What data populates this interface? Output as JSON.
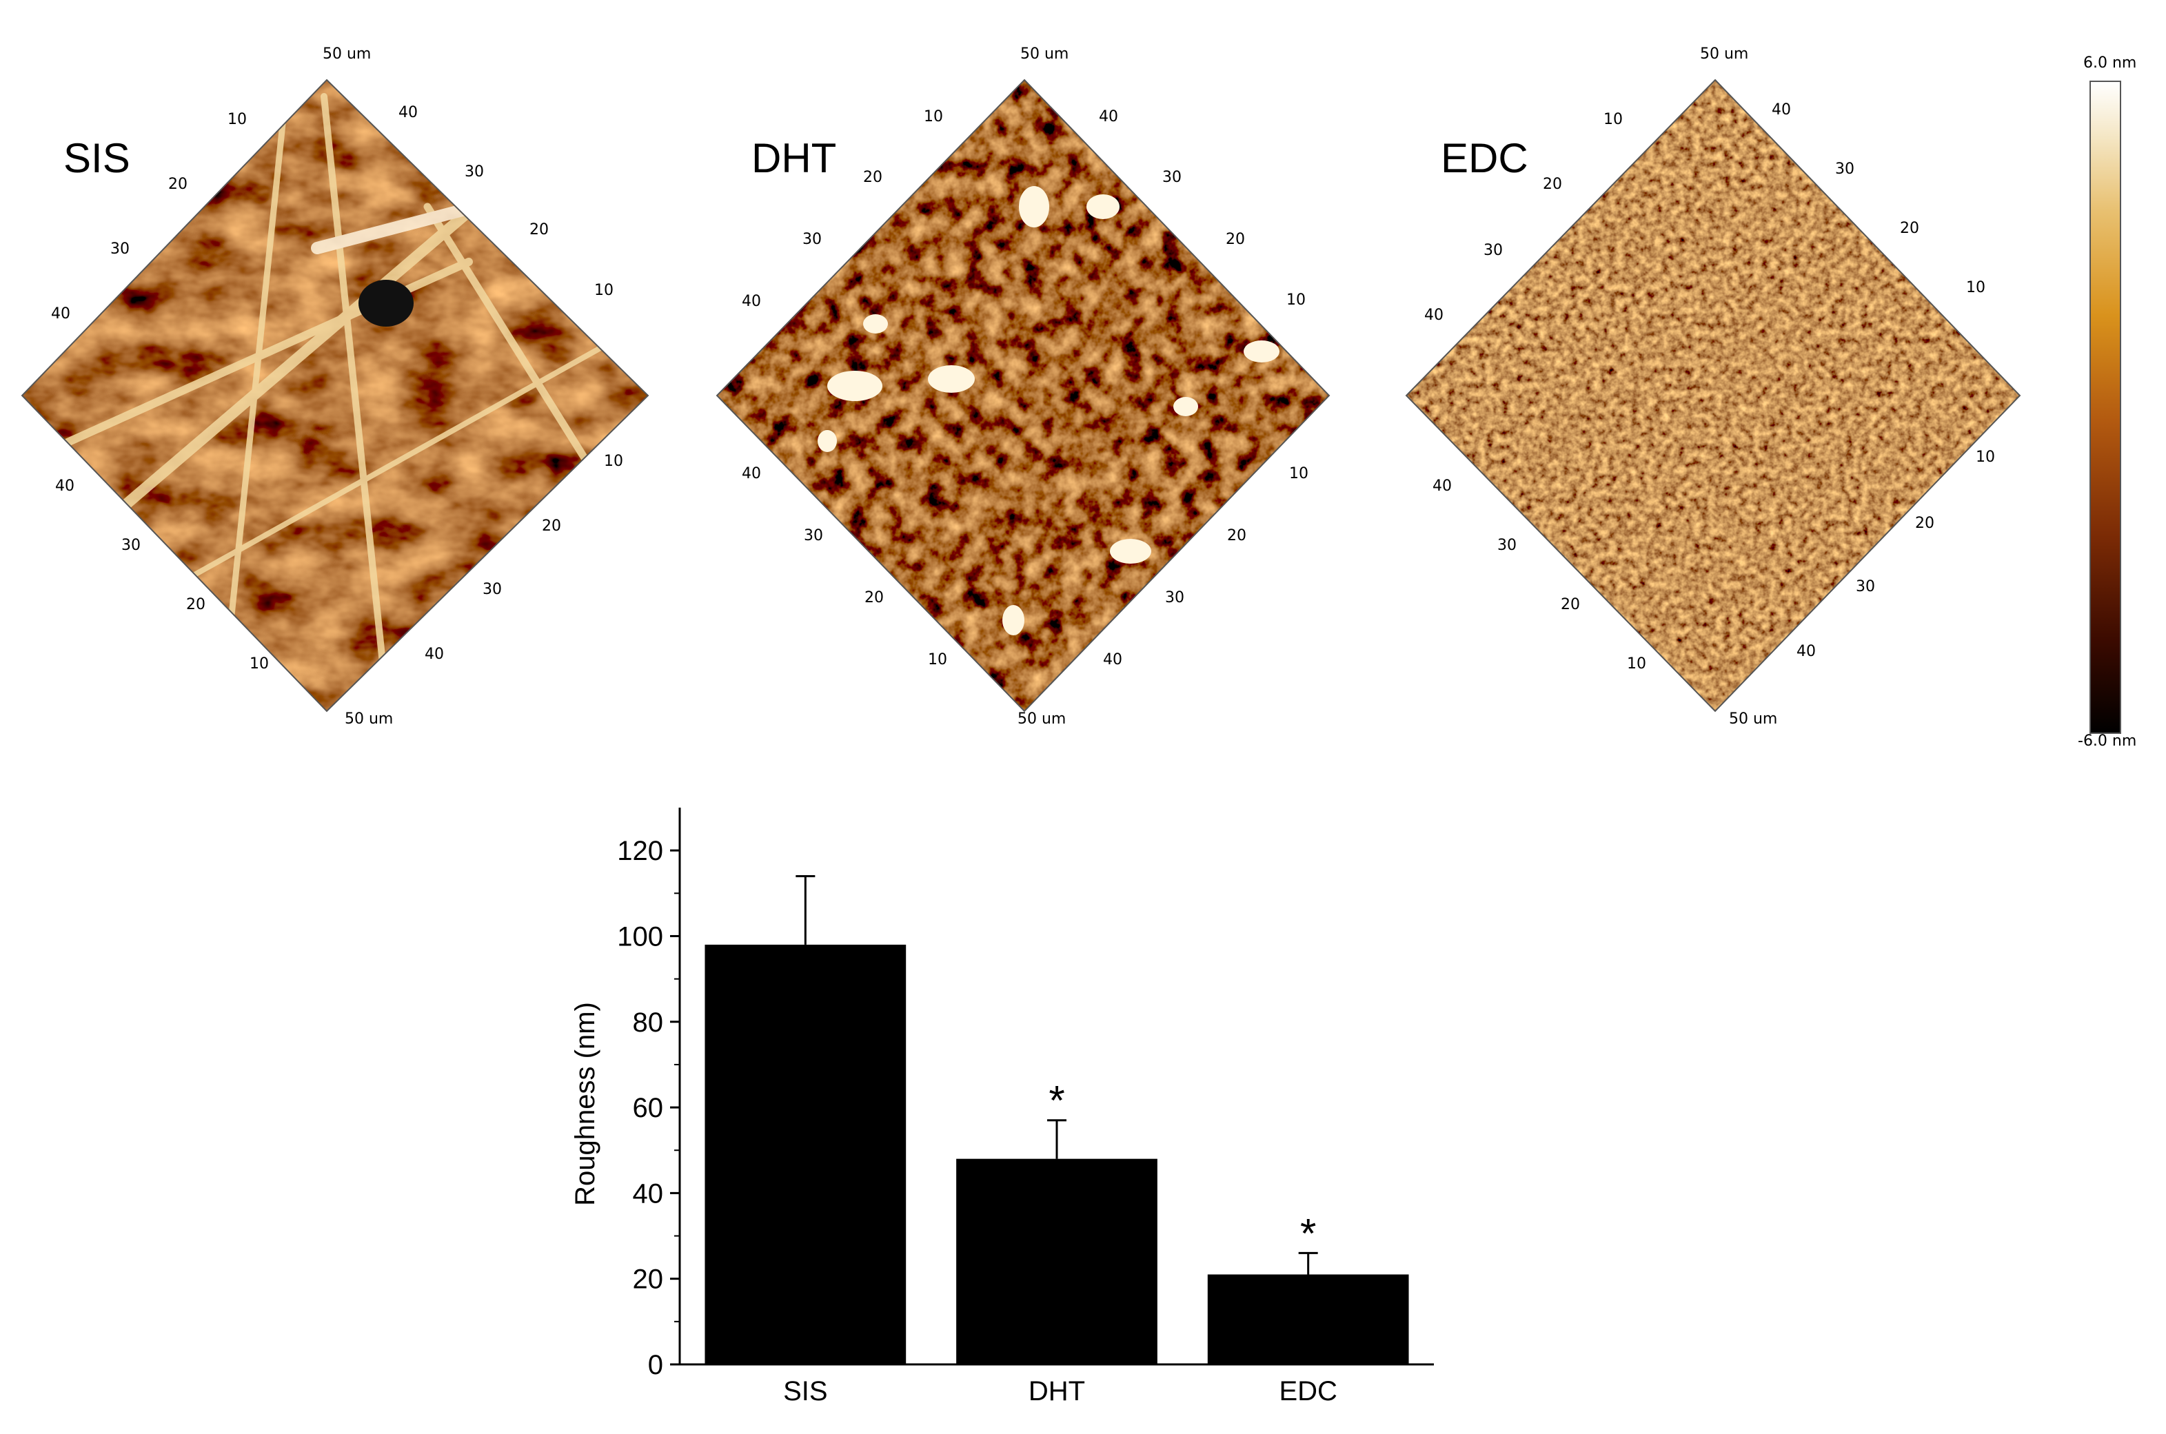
{
  "afm_panels": [
    {
      "label": "SIS",
      "side_a_ticks": [
        "10",
        "20",
        "30",
        "40"
      ],
      "side_b_ticks": [
        "40",
        "30",
        "20",
        "10"
      ],
      "side_c_ticks": [
        "10",
        "20",
        "30",
        "40"
      ],
      "side_d_ticks": [
        "40",
        "30",
        "20",
        "10"
      ],
      "corner_top": "50 um",
      "corner_bottom": "50 um"
    },
    {
      "label": "DHT",
      "side_a_ticks": [
        "10",
        "20",
        "30",
        "40"
      ],
      "side_b_ticks": [
        "40",
        "30",
        "20",
        "10"
      ],
      "side_c_ticks": [
        "10",
        "20",
        "30",
        "40"
      ],
      "side_d_ticks": [
        "40",
        "30",
        "20",
        "10"
      ],
      "corner_top": "50 um",
      "corner_bottom": "50 um"
    },
    {
      "label": "EDC",
      "side_a_ticks": [
        "10",
        "20",
        "30",
        "40"
      ],
      "side_b_ticks": [
        "40",
        "30",
        "20",
        "10"
      ],
      "side_c_ticks": [
        "10",
        "20",
        "30",
        "40"
      ],
      "side_d_ticks": [
        "40",
        "30",
        "20",
        "10"
      ],
      "corner_top": "50 um",
      "corner_bottom": "50 um"
    }
  ],
  "colorbar": {
    "top_label": "6.0 nm",
    "bottom_label": "-6.0 nm",
    "colors": [
      "#000000",
      "#3a0a00",
      "#7a2a05",
      "#b35a10",
      "#d9921c",
      "#e8c070",
      "#f5e8c8",
      "#ffffff"
    ]
  },
  "chart_data": {
    "type": "bar",
    "categories": [
      "SIS",
      "DHT",
      "EDC"
    ],
    "values": [
      98,
      48,
      21
    ],
    "errors": [
      16,
      9,
      5
    ],
    "significance": [
      "",
      "*",
      "*"
    ],
    "ylabel": "Roughness (nm)",
    "xlabel": "",
    "ylim": [
      0,
      130
    ],
    "yticks": [
      0,
      20,
      40,
      60,
      80,
      100,
      120
    ],
    "bar_color": "#000000"
  }
}
